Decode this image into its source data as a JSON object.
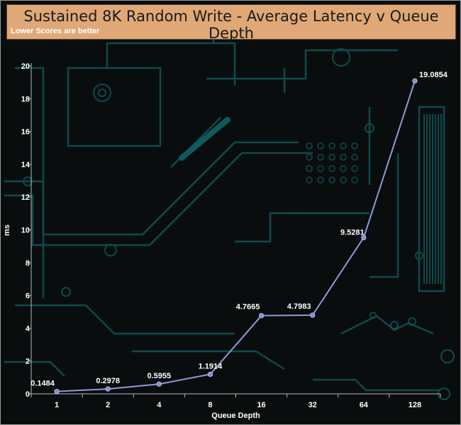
{
  "chart_data": {
    "type": "line",
    "title": "Sustained 8K Random Write - Average Latency v Queue Depth",
    "subtitle": "Lower Scores are better",
    "xlabel": "Queue Depth",
    "ylabel": "ms",
    "categories": [
      "1",
      "2",
      "4",
      "8",
      "16",
      "32",
      "64",
      "128"
    ],
    "series": [
      {
        "values": [
          0.1484,
          0.2978,
          0.5955,
          1.1914,
          4.7665,
          4.7983,
          9.5281,
          19.0854
        ]
      }
    ],
    "data_labels": [
      "0.1484",
      "0.2978",
      "0.5955",
      "1.1914",
      "4.7665",
      "4.7983",
      "9.5281",
      "19.0854"
    ],
    "ylim": [
      0,
      20
    ],
    "yticks": [
      0,
      2,
      4,
      6,
      8,
      10,
      12,
      14,
      16,
      18,
      20
    ],
    "grid": false,
    "colors": {
      "line": "#8e9ad6",
      "marker": "#7f8dd0",
      "background": "#0a0d0e",
      "circuit": "#0f4a4c",
      "title_box": "#e0a877"
    }
  }
}
